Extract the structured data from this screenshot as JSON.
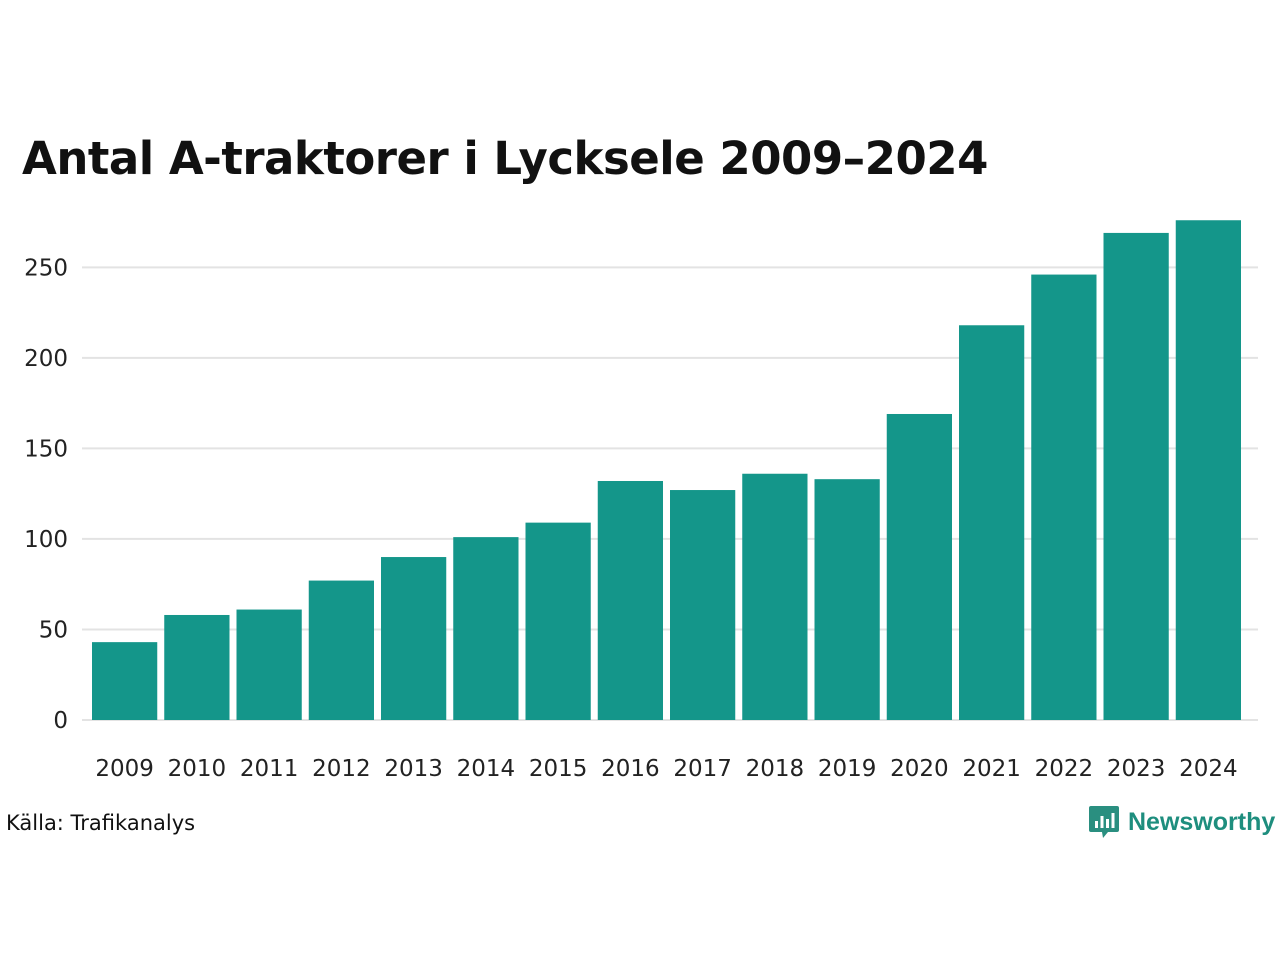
{
  "chart_data": {
    "type": "bar",
    "title": "Antal A-traktorer i Lycksele 2009–2024",
    "categories": [
      "2009",
      "2010",
      "2011",
      "2012",
      "2013",
      "2014",
      "2015",
      "2016",
      "2017",
      "2018",
      "2019",
      "2020",
      "2021",
      "2022",
      "2023",
      "2024"
    ],
    "values": [
      43,
      58,
      61,
      77,
      90,
      101,
      109,
      132,
      127,
      136,
      133,
      169,
      218,
      246,
      269,
      276
    ],
    "yticks": [
      0,
      50,
      100,
      150,
      200,
      250
    ],
    "ylim": [
      0,
      280
    ],
    "grid": true,
    "bar_color": "#14968a",
    "xlabel": "",
    "ylabel": ""
  },
  "source": "Källa: Trafikanalys",
  "brand": {
    "name": "Newsworthy",
    "color": "#1e8e7e",
    "icon": "chart-speech-bubble-icon"
  }
}
